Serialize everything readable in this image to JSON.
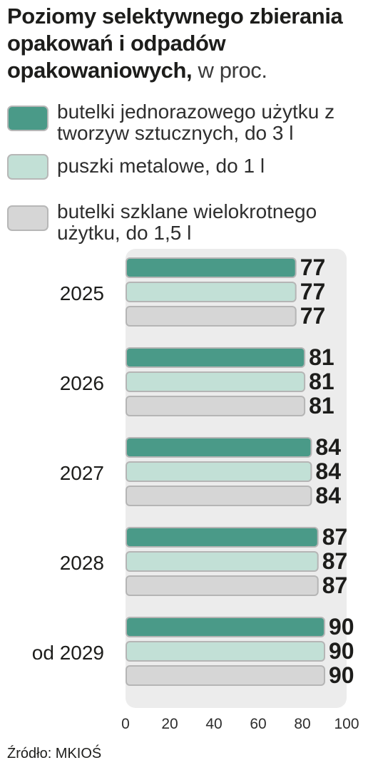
{
  "title": {
    "bold": "Poziomy selektywnego zbierania opakowań i odpadów opakowaniowych,",
    "unit": "w proc."
  },
  "colors": {
    "series": [
      "#4a9a88",
      "#c2e0d6",
      "#d6d6d6"
    ],
    "plot_background": "#ececec",
    "bar_border": "#b5b5b5"
  },
  "chart_data": {
    "type": "bar",
    "orientation": "horizontal",
    "title": "Poziomy selektywnego zbierania opakowań i odpadów opakowaniowych, w proc.",
    "categories": [
      "2025",
      "2026",
      "2027",
      "2028",
      "od 2029"
    ],
    "series": [
      {
        "name": "butelki jednorazowego użytku z tworzyw sztucznych, do 3 l",
        "values": [
          77,
          81,
          84,
          87,
          90
        ]
      },
      {
        "name": "puszki metalowe, do 1 l",
        "values": [
          77,
          81,
          84,
          87,
          90
        ]
      },
      {
        "name": "butelki szklane wielokrotnego użytku, do 1,5 l",
        "values": [
          77,
          81,
          84,
          87,
          90
        ]
      }
    ],
    "xlim": [
      0,
      100
    ],
    "xticks": [
      "0",
      "20",
      "40",
      "60",
      "80",
      "100"
    ],
    "xlabel": "",
    "ylabel": "",
    "grid": false,
    "legend": "top",
    "data_labels": true
  },
  "source": "Źródło: MKIOŚ"
}
